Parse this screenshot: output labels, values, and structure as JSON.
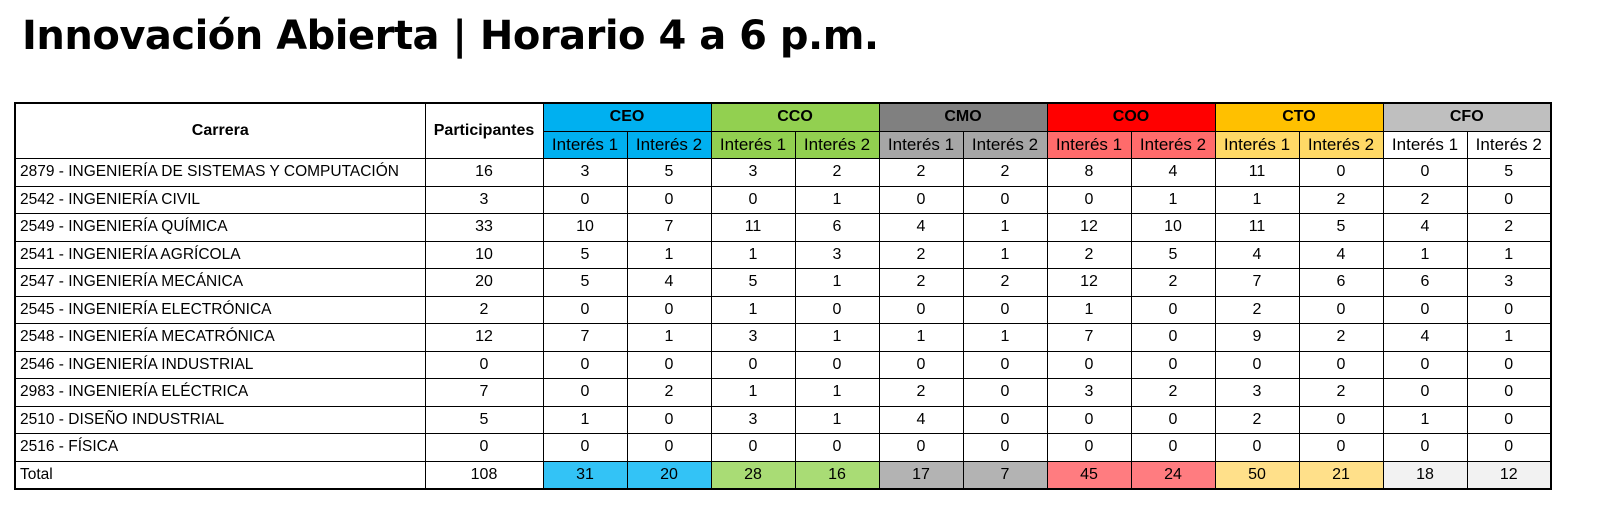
{
  "title": "Innovación Abierta | Horario 4 a 6 p.m.",
  "headers": {
    "carrera": "Carrera",
    "participantes": "Participantes",
    "interes1": "Interés 1",
    "interes2": "Interés 2"
  },
  "groups": [
    {
      "name": "CEO",
      "header_color": "#00b0f0",
      "sub_color": "#00b0f0",
      "total_color": "#33c3f6"
    },
    {
      "name": "CCO",
      "header_color": "#92d050",
      "sub_color": "#92d050",
      "total_color": "#a9dc75"
    },
    {
      "name": "CMO",
      "header_color": "#808080",
      "sub_color": "#a6a6a6",
      "total_color": "#b3b3b3"
    },
    {
      "name": "COO",
      "header_color": "#ff0000",
      "sub_color": "#ff6b6b",
      "total_color": "#ff7c80"
    },
    {
      "name": "CTO",
      "header_color": "#ffc000",
      "sub_color": "#ffd966",
      "total_color": "#ffe08a"
    },
    {
      "name": "CFO",
      "header_color": "#bfbfbf",
      "sub_color": "#ffffff",
      "total_color": "#f2f2f2"
    }
  ],
  "rows": [
    {
      "carrera": "2879 - INGENIERÍA DE SISTEMAS Y COMPUTACIÓN",
      "participantes": "16",
      "values": [
        "3",
        "5",
        "3",
        "2",
        "2",
        "2",
        "8",
        "4",
        "11",
        "0",
        "0",
        "5"
      ]
    },
    {
      "carrera": "2542 - INGENIERÍA CIVIL",
      "participantes": "3",
      "values": [
        "0",
        "0",
        "0",
        "1",
        "0",
        "0",
        "0",
        "1",
        "1",
        "2",
        "2",
        "0"
      ]
    },
    {
      "carrera": "2549 - INGENIERÍA QUÍMICA",
      "participantes": "33",
      "values": [
        "10",
        "7",
        "11",
        "6",
        "4",
        "1",
        "12",
        "10",
        "11",
        "5",
        "4",
        "2"
      ]
    },
    {
      "carrera": "2541 - INGENIERÍA AGRÍCOLA",
      "participantes": "10",
      "values": [
        "5",
        "1",
        "1",
        "3",
        "2",
        "1",
        "2",
        "5",
        "4",
        "4",
        "1",
        "1"
      ]
    },
    {
      "carrera": "2547 - INGENIERÍA MECÁNICA",
      "participantes": "20",
      "values": [
        "5",
        "4",
        "5",
        "1",
        "2",
        "2",
        "12",
        "2",
        "7",
        "6",
        "6",
        "3"
      ]
    },
    {
      "carrera": "2545 - INGENIERÍA ELECTRÓNICA",
      "participantes": "2",
      "values": [
        "0",
        "0",
        "1",
        "0",
        "0",
        "0",
        "1",
        "0",
        "2",
        "0",
        "0",
        "0"
      ]
    },
    {
      "carrera": "2548 - INGENIERÍA MECATRÓNICA",
      "participantes": "12",
      "values": [
        "7",
        "1",
        "3",
        "1",
        "1",
        "1",
        "7",
        "0",
        "9",
        "2",
        "4",
        "1"
      ]
    },
    {
      "carrera": "2546 - INGENIERÍA INDUSTRIAL",
      "participantes": "0",
      "values": [
        "0",
        "0",
        "0",
        "0",
        "0",
        "0",
        "0",
        "0",
        "0",
        "0",
        "0",
        "0"
      ]
    },
    {
      "carrera": "2983 - INGENIERÍA ELÉCTRICA",
      "participantes": "7",
      "values": [
        "0",
        "2",
        "1",
        "1",
        "2",
        "0",
        "3",
        "2",
        "3",
        "2",
        "0",
        "0"
      ]
    },
    {
      "carrera": "2510 - DISEÑO INDUSTRIAL",
      "participantes": "5",
      "values": [
        "1",
        "0",
        "3",
        "1",
        "4",
        "0",
        "0",
        "0",
        "2",
        "0",
        "1",
        "0"
      ]
    },
    {
      "carrera": "2516 - FÍSICA",
      "participantes": "0",
      "values": [
        "0",
        "0",
        "0",
        "0",
        "0",
        "0",
        "0",
        "0",
        "0",
        "0",
        "0",
        "0"
      ]
    }
  ],
  "total": {
    "label": "Total",
    "participantes": "108",
    "values": [
      "31",
      "20",
      "28",
      "16",
      "17",
      "7",
      "45",
      "24",
      "50",
      "21",
      "18",
      "12"
    ]
  }
}
